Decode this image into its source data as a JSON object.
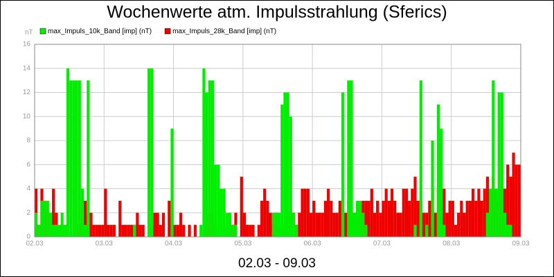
{
  "chart_data": {
    "type": "bar",
    "title": "Wochenwerte atm. Impulsstrahlung (Sferics)",
    "y_label": "nT",
    "x_label": "02.03 - 09.03",
    "x": [
      0,
      1,
      2,
      3,
      4,
      5,
      6,
      7,
      8,
      9,
      10,
      11,
      12,
      13,
      14,
      15,
      16,
      17,
      18,
      19,
      20,
      21,
      22,
      23,
      24,
      25,
      26,
      27,
      28,
      29,
      30,
      31,
      32,
      33,
      34,
      35,
      36,
      37,
      38,
      39,
      40,
      41,
      42,
      43,
      44,
      45,
      46,
      47,
      48,
      49,
      50,
      51,
      52,
      53,
      54,
      55,
      56,
      57,
      58,
      59,
      60,
      61,
      62,
      63,
      64,
      65,
      66,
      67,
      68,
      69,
      70,
      71,
      72,
      73,
      74,
      75,
      76,
      77,
      78,
      79,
      80,
      81,
      82,
      83,
      84,
      85,
      86,
      87,
      88,
      89,
      90,
      91,
      92,
      93,
      94,
      95,
      96,
      97,
      98,
      99,
      100,
      101,
      102,
      103,
      104,
      105,
      106,
      107,
      108,
      109,
      110,
      111,
      112,
      113,
      114,
      115,
      116,
      117,
      118,
      119,
      120,
      121,
      122,
      123,
      124,
      125,
      126,
      127,
      128,
      129,
      130,
      131,
      132,
      133,
      134,
      135,
      136,
      137,
      138,
      139,
      140,
      141,
      142,
      143,
      144,
      145,
      146,
      147,
      148,
      149,
      150,
      151,
      152,
      153,
      154,
      155,
      156,
      157,
      158,
      159,
      160,
      161,
      162,
      163,
      164,
      165,
      166,
      167
    ],
    "series": [
      {
        "name": "max_Impuls_10k_Band [imp] (nT)",
        "color": "#00ee00",
        "values": [
          2,
          1,
          3,
          3,
          3,
          2,
          1,
          1,
          1,
          2,
          1,
          14,
          13,
          13,
          13,
          13,
          4,
          1,
          13,
          0,
          0,
          0,
          0,
          0,
          0,
          0,
          0,
          0,
          0,
          0,
          0,
          0,
          0,
          0,
          1,
          0,
          0,
          0,
          0,
          14,
          14,
          0,
          0,
          0,
          0,
          0,
          0,
          9,
          0,
          0,
          0,
          0,
          0,
          0,
          0,
          0,
          0,
          1,
          14,
          12,
          13,
          13,
          6,
          6,
          4,
          4,
          2,
          2,
          1,
          1,
          0,
          0,
          0,
          0,
          0,
          0,
          0,
          0,
          0,
          0,
          0,
          0,
          2,
          2,
          2,
          11,
          12,
          12,
          10,
          2,
          1,
          0,
          0,
          0,
          0,
          0,
          0,
          0,
          0,
          0,
          0,
          0,
          0,
          0,
          0,
          0,
          12,
          0,
          13,
          13,
          2,
          3,
          3,
          2,
          1,
          0,
          0,
          0,
          0,
          0,
          0,
          0,
          0,
          0,
          0,
          0,
          0,
          0,
          0,
          0,
          0,
          1,
          0,
          13,
          0,
          1,
          0,
          8,
          0,
          11,
          9,
          1,
          0,
          0,
          0,
          0,
          0,
          0,
          0,
          0,
          0,
          0,
          0,
          0,
          0,
          0,
          2,
          4,
          13,
          4,
          12,
          12,
          2,
          1,
          1,
          0,
          0,
          0
        ]
      },
      {
        "name": "max_Impuls_28k_Band [imp] (nT)",
        "color": "#ee0000",
        "values": [
          4,
          1,
          4,
          3,
          2,
          1,
          4,
          2,
          0,
          1,
          1,
          0,
          0,
          0,
          0,
          1,
          3,
          3,
          2,
          2,
          1,
          1,
          1,
          1,
          4,
          1,
          1,
          1,
          0,
          3,
          1,
          1,
          1,
          1,
          1,
          2,
          1,
          1,
          0,
          1,
          1,
          2,
          2,
          1,
          2,
          0,
          3,
          2,
          1,
          1,
          2,
          1,
          0,
          1,
          0,
          1,
          0,
          0,
          0,
          1,
          2,
          1,
          1,
          0,
          1,
          0,
          1,
          1,
          1,
          2,
          0,
          5,
          2,
          1,
          1,
          1,
          0,
          1,
          3,
          4,
          3,
          2,
          1,
          2,
          1,
          1,
          1,
          2,
          2,
          2,
          1,
          2,
          4,
          4,
          4,
          2,
          3,
          2,
          2,
          2,
          3,
          4,
          3,
          2,
          2,
          3,
          2,
          2,
          3,
          2,
          2,
          1,
          2,
          3,
          3,
          3,
          4,
          2,
          3,
          2,
          3,
          4,
          3,
          4,
          3,
          2,
          2,
          4,
          4,
          3,
          4,
          5,
          3,
          3,
          2,
          2,
          3,
          4,
          2,
          4,
          2,
          4,
          2,
          3,
          3,
          1,
          2,
          3,
          2,
          3,
          3,
          4,
          3,
          4,
          3,
          4,
          5,
          4,
          5,
          4,
          3,
          4,
          4,
          6,
          5,
          7,
          6,
          6
        ]
      }
    ],
    "xlim": [
      0,
      168
    ],
    "xticks": [
      {
        "value": 0,
        "label": "02.03"
      },
      {
        "value": 24,
        "label": "03.03"
      },
      {
        "value": 48,
        "label": "04.03"
      },
      {
        "value": 72,
        "label": "05.03"
      },
      {
        "value": 96,
        "label": "06.03"
      },
      {
        "value": 120,
        "label": "07.03"
      },
      {
        "value": 144,
        "label": "08.03"
      },
      {
        "value": 168,
        "label": "09.03"
      }
    ],
    "ylim": [
      0,
      16
    ],
    "yticks": [
      0,
      2,
      4,
      6,
      8,
      10,
      12,
      14,
      16
    ],
    "grid": true
  }
}
